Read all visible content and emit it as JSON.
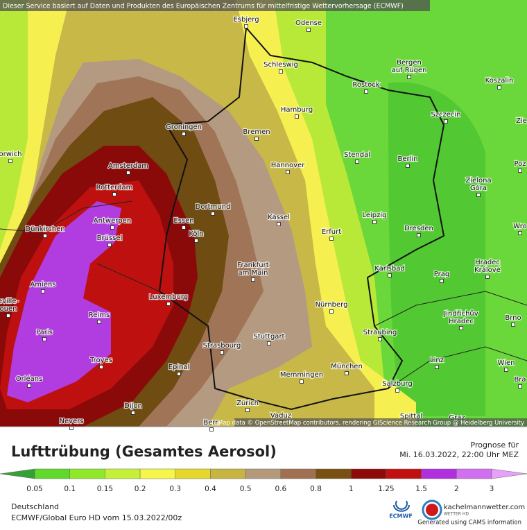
{
  "header": {
    "notice": "Dieser Service basiert auf Daten und Produkten des Europäischen Zentrums für mittelfristige Wettervorhersage (ECMWF)"
  },
  "map": {
    "attribution": "Map data © OpenStreetMap contributors, rendering GIScience Research Group @ Heidelberg University",
    "cities": [
      {
        "lines": [
          "Esbjerg"
        ]
      },
      {
        "lines": [
          "Odense"
        ]
      },
      {
        "lines": [
          "Schleswig"
        ]
      },
      {
        "lines": [
          "Bergen",
          "auf Rügen"
        ]
      },
      {
        "lines": [
          "Rostock"
        ]
      },
      {
        "lines": [
          "Koszalin"
        ]
      },
      {
        "lines": [
          "Hamburg"
        ]
      },
      {
        "lines": [
          "Szczecin"
        ]
      },
      {
        "lines": [
          "Groningen"
        ]
      },
      {
        "lines": [
          "Bremen"
        ]
      },
      {
        "lines": [
          "Stendal"
        ]
      },
      {
        "lines": [
          "Berlin"
        ]
      },
      {
        "lines": [
          "Hannover"
        ]
      },
      {
        "lines": [
          "Amsterdam"
        ]
      },
      {
        "lines": [
          "Rotterdam"
        ]
      },
      {
        "lines": [
          "Zielona",
          "Góra"
        ]
      },
      {
        "lines": [
          "Dortmund"
        ]
      },
      {
        "lines": [
          "Leipzig"
        ]
      },
      {
        "lines": [
          "Kassel"
        ]
      },
      {
        "lines": [
          "Essen"
        ]
      },
      {
        "lines": [
          "Antwerpen"
        ]
      },
      {
        "lines": [
          "Dünkirchen"
        ]
      },
      {
        "lines": [
          "Erfurt"
        ]
      },
      {
        "lines": [
          "Köln"
        ]
      },
      {
        "lines": [
          "Dresden"
        ]
      },
      {
        "lines": [
          "Brüssel"
        ]
      },
      {
        "lines": [
          "Karlsbad"
        ]
      },
      {
        "lines": [
          "Frankfurt",
          "am Main"
        ]
      },
      {
        "lines": [
          "Prag"
        ]
      },
      {
        "lines": [
          "Hradec",
          "Králové"
        ]
      },
      {
        "lines": [
          "Amiens"
        ]
      },
      {
        "lines": [
          "Luxemburg"
        ]
      },
      {
        "lines": [
          "Nürnberg"
        ]
      },
      {
        "lines": [
          "Reims"
        ]
      },
      {
        "lines": [
          "Jindřichův",
          "Hradec"
        ]
      },
      {
        "lines": [
          "Brno"
        ]
      },
      {
        "lines": [
          "Paris"
        ]
      },
      {
        "lines": [
          "Stuttgart"
        ]
      },
      {
        "lines": [
          "Straubing"
        ]
      },
      {
        "lines": [
          "Strasbourg"
        ]
      },
      {
        "lines": [
          "Troyes"
        ]
      },
      {
        "lines": [
          "Epinal"
        ]
      },
      {
        "lines": [
          "Linz"
        ]
      },
      {
        "lines": [
          "München"
        ]
      },
      {
        "lines": [
          "Memmingen"
        ]
      },
      {
        "lines": [
          "Wien"
        ]
      },
      {
        "lines": [
          "Orléans"
        ]
      },
      {
        "lines": [
          "Salzburg"
        ]
      },
      {
        "lines": [
          "Dijon"
        ]
      },
      {
        "lines": [
          "Zürich"
        ]
      },
      {
        "lines": [
          "Vaduz"
        ]
      },
      {
        "lines": [
          "Nevers"
        ]
      },
      {
        "lines": [
          "Bern"
        ]
      },
      {
        "lines": [
          "Graz"
        ]
      },
      {
        "lines": [
          "Spittal"
        ]
      },
      {
        "lines": [
          "orwich"
        ]
      },
      {
        "lines": [
          "Zie"
        ]
      },
      {
        "lines": [
          "Poz"
        ]
      },
      {
        "lines": [
          "Wro"
        ]
      },
      {
        "lines": [
          "Bra"
        ]
      },
      {
        "lines": [
          "eville-",
          "ouen"
        ]
      }
    ]
  },
  "legend": {
    "title": "Lufttrübung (Gesamtes Aerosol)",
    "ticks": [
      "0.05",
      "0.1",
      "0.15",
      "0.2",
      "0.3",
      "0.4",
      "0.5",
      "0.6",
      "0.8",
      "1",
      "1.25",
      "1.5",
      "2",
      "3"
    ],
    "colors": [
      "#35a035",
      "#5fd92a",
      "#8fe82a",
      "#c4f038",
      "#f5f54a",
      "#e6d82a",
      "#c8b440",
      "#b49a7a",
      "#a07050",
      "#785010",
      "#8c0a0a",
      "#c01010",
      "#b030e0",
      "#d070f0",
      "#e8a0f8"
    ]
  },
  "forecast": {
    "label": "Prognose für",
    "time": "Mi. 16.03.2022, 22:00 Uhr MEZ"
  },
  "footer": {
    "region": "Deutschland",
    "model": "ECMWF/Global Euro HD vom  15.03.2022/00z",
    "ecmwf": "ECMWF",
    "site": "kachelmannwetter.com",
    "site_sub": "WETTER HD",
    "cams": "Generated using CAMS information"
  }
}
